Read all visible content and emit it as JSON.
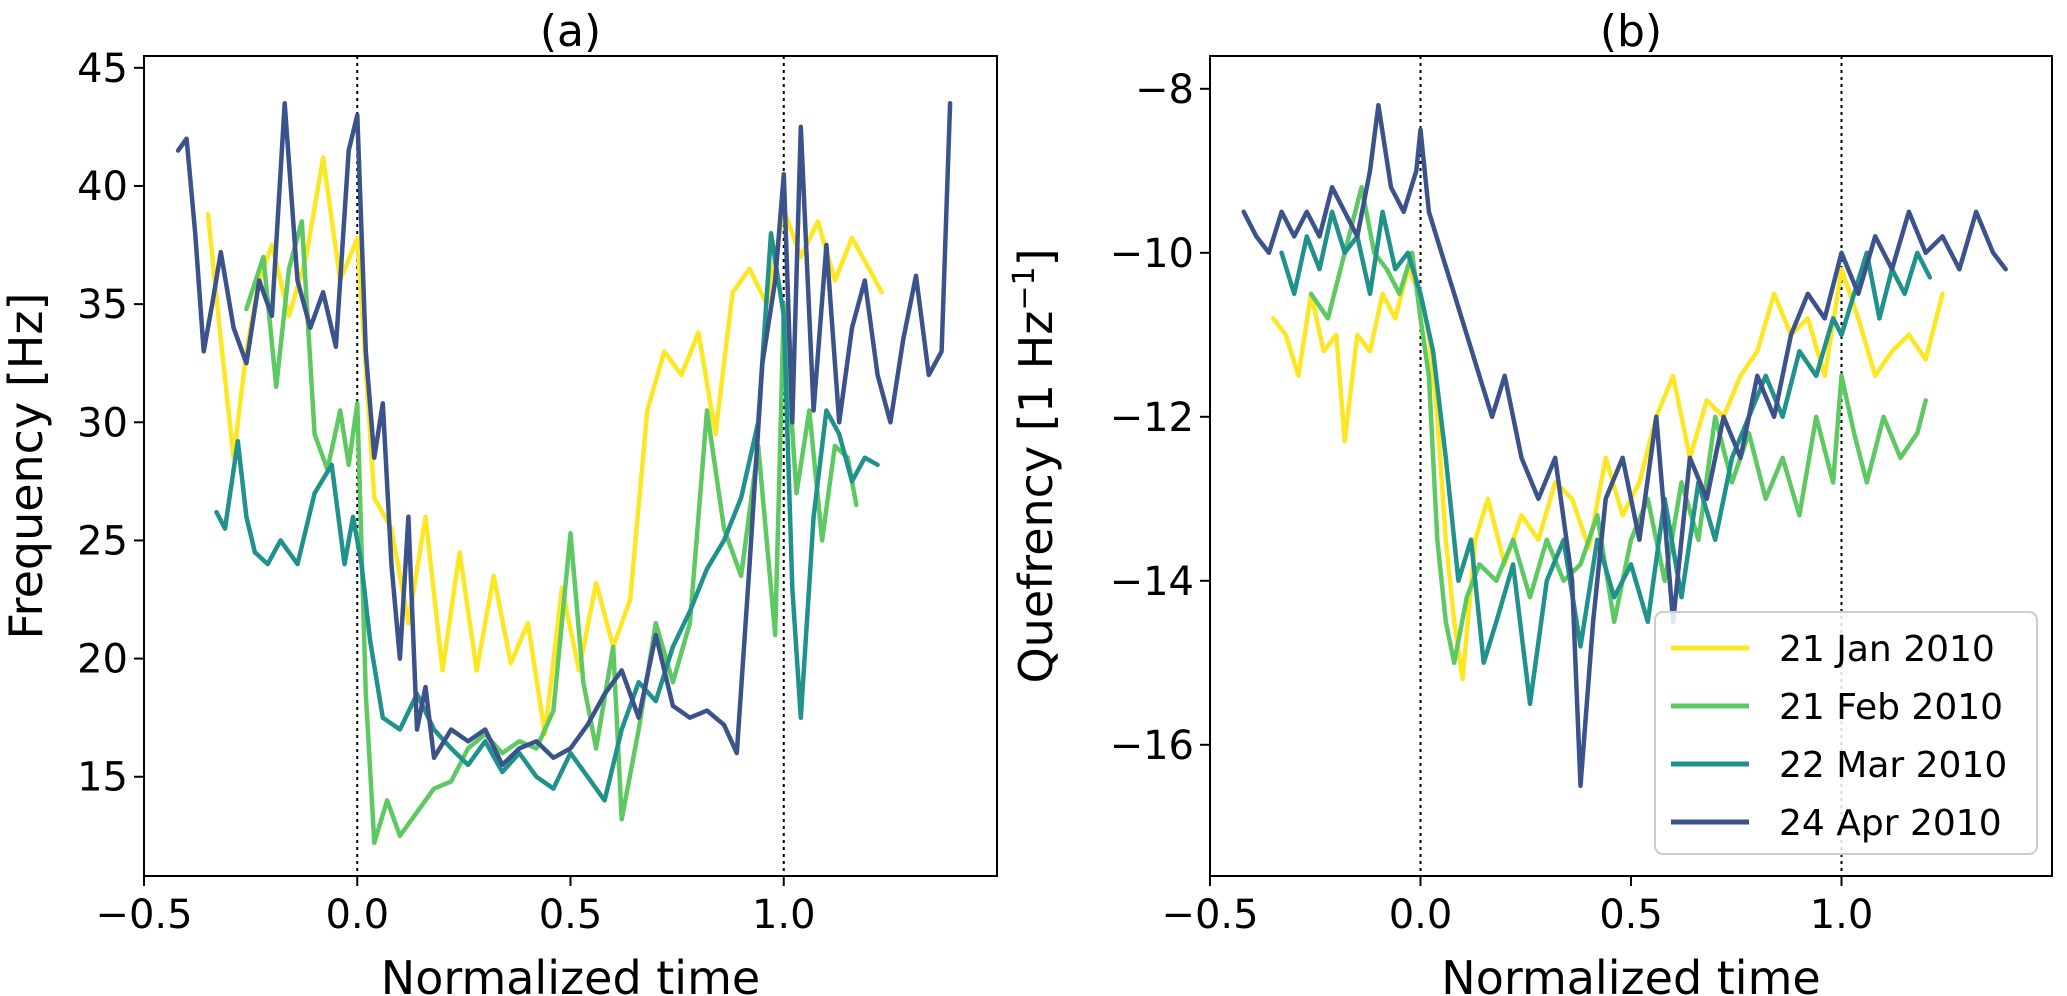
{
  "chart_data": [
    {
      "type": "line",
      "title": "(a)",
      "xlabel": "Normalized time",
      "ylabel": "Frequency [Hz]",
      "xlim": [
        -0.5,
        1.5
      ],
      "ylim": [
        10.8,
        45.5
      ],
      "xticks": [
        -0.5,
        0.0,
        0.5,
        1.0
      ],
      "xtick_labels": [
        "−0.5",
        "0.0",
        "0.5",
        "1.0"
      ],
      "yticks": [
        15,
        20,
        25,
        30,
        35,
        40,
        45
      ],
      "ytick_labels": [
        "15",
        "20",
        "25",
        "30",
        "35",
        "40",
        "45"
      ],
      "vlines": [
        0.0,
        1.0
      ],
      "grid": false,
      "series": [
        {
          "color": "#fde725",
          "x": [
            -0.35,
            -0.32,
            -0.29,
            -0.26,
            -0.23,
            -0.2,
            -0.16,
            -0.12,
            -0.08,
            -0.04,
            0.0,
            0.04,
            0.08,
            0.12,
            0.16,
            0.2,
            0.24,
            0.28,
            0.32,
            0.36,
            0.4,
            0.44,
            0.48,
            0.52,
            0.56,
            0.6,
            0.64,
            0.68,
            0.72,
            0.76,
            0.8,
            0.84,
            0.88,
            0.92,
            0.96,
            1.0,
            1.04,
            1.08,
            1.12,
            1.16,
            1.2,
            1.23
          ],
          "y": [
            38.8,
            33.5,
            28.5,
            33.0,
            36.0,
            37.5,
            34.5,
            37.0,
            41.2,
            36.0,
            37.8,
            26.8,
            25.5,
            21.5,
            26.0,
            19.5,
            24.5,
            19.5,
            23.5,
            19.8,
            21.5,
            16.8,
            23.0,
            19.5,
            23.2,
            20.5,
            22.5,
            30.5,
            33.0,
            32.0,
            33.8,
            29.5,
            35.5,
            36.5,
            35.0,
            39.0,
            37.0,
            38.5,
            36.0,
            37.8,
            36.5,
            35.5
          ]
        },
        {
          "color": "#5ec962",
          "x": [
            -0.26,
            -0.22,
            -0.19,
            -0.16,
            -0.13,
            -0.1,
            -0.07,
            -0.04,
            -0.02,
            0.0,
            0.02,
            0.04,
            0.07,
            0.1,
            0.14,
            0.18,
            0.22,
            0.26,
            0.3,
            0.34,
            0.38,
            0.42,
            0.46,
            0.5,
            0.53,
            0.56,
            0.6,
            0.62,
            0.66,
            0.7,
            0.74,
            0.78,
            0.82,
            0.86,
            0.9,
            0.94,
            0.98,
            1.0,
            1.03,
            1.06,
            1.09,
            1.12,
            1.15,
            1.17
          ],
          "y": [
            34.8,
            37.0,
            31.5,
            36.5,
            38.5,
            29.5,
            28.0,
            30.5,
            28.2,
            30.8,
            18.5,
            12.2,
            14.0,
            12.5,
            13.5,
            14.5,
            14.8,
            16.2,
            16.8,
            16.0,
            16.5,
            16.2,
            17.8,
            25.3,
            19.0,
            16.2,
            20.5,
            13.2,
            17.0,
            21.5,
            19.0,
            21.5,
            30.5,
            25.5,
            23.5,
            29.0,
            21.0,
            35.0,
            27.0,
            30.5,
            25.0,
            29.0,
            28.5,
            26.5
          ]
        },
        {
          "color": "#21918c",
          "x": [
            -0.33,
            -0.31,
            -0.28,
            -0.26,
            -0.24,
            -0.21,
            -0.18,
            -0.14,
            -0.1,
            -0.06,
            -0.03,
            -0.01,
            0.01,
            0.03,
            0.06,
            0.1,
            0.14,
            0.18,
            0.22,
            0.26,
            0.3,
            0.34,
            0.38,
            0.42,
            0.46,
            0.5,
            0.54,
            0.58,
            0.62,
            0.66,
            0.7,
            0.74,
            0.78,
            0.82,
            0.86,
            0.9,
            0.94,
            0.97,
            1.0,
            1.02,
            1.04,
            1.07,
            1.1,
            1.13,
            1.16,
            1.19,
            1.22
          ],
          "y": [
            26.2,
            25.5,
            29.2,
            26.0,
            24.5,
            24.0,
            25.0,
            24.0,
            27.0,
            28.2,
            24.0,
            26.0,
            24.0,
            20.8,
            17.5,
            17.0,
            18.5,
            17.0,
            16.2,
            15.5,
            16.5,
            15.2,
            16.0,
            15.0,
            14.5,
            16.0,
            15.0,
            14.0,
            17.0,
            19.0,
            18.2,
            20.5,
            22.0,
            23.8,
            25.0,
            26.8,
            30.0,
            38.0,
            34.5,
            23.0,
            17.5,
            26.0,
            30.5,
            29.5,
            27.5,
            28.5,
            28.2
          ]
        },
        {
          "color": "#3b528b",
          "x": [
            -0.42,
            -0.4,
            -0.38,
            -0.36,
            -0.34,
            -0.32,
            -0.29,
            -0.26,
            -0.23,
            -0.2,
            -0.17,
            -0.14,
            -0.11,
            -0.08,
            -0.05,
            -0.02,
            0.0,
            0.02,
            0.04,
            0.06,
            0.08,
            0.1,
            0.12,
            0.14,
            0.16,
            0.18,
            0.22,
            0.26,
            0.3,
            0.34,
            0.38,
            0.42,
            0.46,
            0.5,
            0.54,
            0.58,
            0.62,
            0.66,
            0.7,
            0.74,
            0.78,
            0.82,
            0.86,
            0.89,
            0.92,
            0.95,
            0.98,
            1.0,
            1.02,
            1.04,
            1.07,
            1.1,
            1.13,
            1.16,
            1.19,
            1.22,
            1.25,
            1.28,
            1.31,
            1.34,
            1.37,
            1.39
          ],
          "y": [
            41.5,
            42.0,
            38.0,
            33.0,
            35.0,
            37.2,
            34.0,
            32.5,
            36.0,
            34.5,
            43.5,
            36.0,
            34.0,
            35.5,
            33.2,
            41.5,
            43.0,
            33.0,
            28.5,
            30.8,
            24.0,
            20.0,
            26.0,
            17.0,
            18.8,
            15.8,
            17.0,
            16.5,
            17.0,
            15.5,
            16.2,
            16.5,
            15.8,
            16.2,
            17.2,
            18.5,
            19.5,
            17.5,
            21.0,
            18.0,
            17.5,
            17.8,
            17.2,
            16.0,
            24.0,
            32.5,
            36.0,
            40.5,
            30.0,
            42.5,
            30.5,
            37.5,
            30.0,
            34.0,
            36.0,
            32.0,
            30.0,
            33.5,
            36.2,
            32.0,
            33.0,
            43.5
          ]
        }
      ]
    },
    {
      "type": "line",
      "title": "(b)",
      "xlabel": "Normalized time",
      "ylabel": "Quefrency [1 Hz",
      "ylabel_superscript": "−1",
      "ylabel_suffix": "]",
      "xlim": [
        -0.5,
        1.5
      ],
      "ylim": [
        -17.6,
        -7.6
      ],
      "xticks": [
        -0.5,
        0.0,
        0.5,
        1.0
      ],
      "xtick_labels": [
        "−0.5",
        "0.0",
        "0.5",
        "1.0"
      ],
      "yticks": [
        -16,
        -14,
        -12,
        -10,
        -8
      ],
      "ytick_labels": [
        "−16",
        "−14",
        "−12",
        "−10",
        "−8"
      ],
      "vlines": [
        0.0,
        1.0
      ],
      "grid": false,
      "legend": "lower-right",
      "series": [
        {
          "name": "21 Jan 2010",
          "color": "#fde725",
          "x": [
            -0.35,
            -0.32,
            -0.29,
            -0.26,
            -0.23,
            -0.2,
            -0.18,
            -0.15,
            -0.12,
            -0.09,
            -0.06,
            -0.03,
            0.0,
            0.02,
            0.04,
            0.06,
            0.08,
            0.1,
            0.13,
            0.16,
            0.2,
            0.24,
            0.28,
            0.32,
            0.36,
            0.4,
            0.44,
            0.48,
            0.52,
            0.56,
            0.6,
            0.64,
            0.68,
            0.72,
            0.76,
            0.8,
            0.84,
            0.88,
            0.92,
            0.96,
            1.0,
            1.04,
            1.08,
            1.12,
            1.16,
            1.2,
            1.24
          ],
          "y": [
            -10.8,
            -11.0,
            -11.5,
            -10.5,
            -11.2,
            -11.0,
            -12.3,
            -11.0,
            -11.2,
            -10.5,
            -10.8,
            -10.2,
            -10.5,
            -11.0,
            -12.0,
            -13.5,
            -14.5,
            -15.2,
            -13.5,
            -13.0,
            -13.8,
            -13.2,
            -13.5,
            -12.8,
            -13.0,
            -13.6,
            -12.5,
            -13.2,
            -12.8,
            -12.0,
            -11.5,
            -12.5,
            -11.8,
            -12.0,
            -11.5,
            -11.2,
            -10.5,
            -11.0,
            -10.8,
            -11.5,
            -10.2,
            -10.8,
            -11.5,
            -11.2,
            -11.0,
            -11.3,
            -10.5
          ]
        },
        {
          "name": "21 Feb 2010",
          "color": "#5ec962",
          "x": [
            -0.26,
            -0.22,
            -0.18,
            -0.14,
            -0.11,
            -0.08,
            -0.05,
            -0.02,
            0.0,
            0.02,
            0.04,
            0.06,
            0.08,
            0.11,
            0.14,
            0.18,
            0.22,
            0.26,
            0.3,
            0.34,
            0.38,
            0.42,
            0.46,
            0.5,
            0.54,
            0.58,
            0.62,
            0.66,
            0.7,
            0.74,
            0.78,
            0.82,
            0.86,
            0.9,
            0.94,
            0.98,
            1.0,
            1.03,
            1.06,
            1.1,
            1.14,
            1.18,
            1.2
          ],
          "y": [
            -10.5,
            -10.8,
            -10.0,
            -9.2,
            -10.0,
            -10.2,
            -10.5,
            -10.0,
            -10.8,
            -11.5,
            -13.5,
            -14.5,
            -15.0,
            -14.2,
            -13.8,
            -14.0,
            -13.5,
            -14.2,
            -13.5,
            -14.0,
            -13.8,
            -13.2,
            -14.5,
            -13.5,
            -13.0,
            -14.0,
            -12.8,
            -13.5,
            -12.0,
            -12.8,
            -12.2,
            -13.0,
            -12.5,
            -13.2,
            -12.0,
            -12.8,
            -11.5,
            -12.2,
            -12.8,
            -12.0,
            -12.5,
            -12.2,
            -11.8
          ]
        },
        {
          "name": "22 Mar 2010",
          "color": "#21918c",
          "x": [
            -0.33,
            -0.3,
            -0.27,
            -0.24,
            -0.21,
            -0.18,
            -0.15,
            -0.12,
            -0.09,
            -0.06,
            -0.03,
            0.0,
            0.03,
            0.06,
            0.09,
            0.12,
            0.15,
            0.18,
            0.22,
            0.26,
            0.3,
            0.34,
            0.38,
            0.42,
            0.46,
            0.5,
            0.54,
            0.58,
            0.62,
            0.66,
            0.7,
            0.74,
            0.78,
            0.82,
            0.86,
            0.9,
            0.94,
            0.98,
            1.0,
            1.03,
            1.06,
            1.09,
            1.12,
            1.15,
            1.18,
            1.21
          ],
          "y": [
            -10.0,
            -10.5,
            -9.8,
            -10.2,
            -9.5,
            -10.0,
            -9.8,
            -10.5,
            -9.5,
            -10.2,
            -10.0,
            -10.5,
            -11.2,
            -12.5,
            -14.0,
            -13.5,
            -15.0,
            -14.5,
            -13.8,
            -15.5,
            -14.0,
            -13.5,
            -14.8,
            -13.5,
            -14.2,
            -13.8,
            -14.5,
            -13.0,
            -14.2,
            -12.8,
            -13.5,
            -12.5,
            -12.0,
            -11.5,
            -12.0,
            -11.2,
            -11.5,
            -10.8,
            -11.0,
            -10.5,
            -10.0,
            -10.8,
            -10.2,
            -10.5,
            -10.0,
            -10.3
          ]
        },
        {
          "name": "24 Apr 2010",
          "color": "#3b528b",
          "x": [
            -0.42,
            -0.39,
            -0.36,
            -0.33,
            -0.3,
            -0.27,
            -0.24,
            -0.21,
            -0.18,
            -0.15,
            -0.12,
            -0.1,
            -0.07,
            -0.04,
            -0.01,
            0.0,
            0.02,
            0.05,
            0.08,
            0.11,
            0.14,
            0.17,
            0.2,
            0.24,
            0.28,
            0.32,
            0.36,
            0.38,
            0.41,
            0.44,
            0.48,
            0.52,
            0.56,
            0.6,
            0.64,
            0.68,
            0.72,
            0.76,
            0.8,
            0.84,
            0.88,
            0.92,
            0.96,
            1.0,
            1.04,
            1.08,
            1.12,
            1.16,
            1.2,
            1.24,
            1.28,
            1.32,
            1.36,
            1.39
          ],
          "y": [
            -9.5,
            -9.8,
            -10.0,
            -9.5,
            -9.8,
            -9.5,
            -9.8,
            -9.2,
            -9.5,
            -9.8,
            -9.0,
            -8.2,
            -9.2,
            -9.5,
            -9.0,
            -8.5,
            -9.5,
            -10.0,
            -10.5,
            -11.0,
            -11.5,
            -12.0,
            -11.5,
            -12.5,
            -13.0,
            -12.5,
            -14.0,
            -16.5,
            -14.5,
            -13.0,
            -12.5,
            -13.5,
            -12.0,
            -14.5,
            -12.5,
            -13.0,
            -12.0,
            -12.5,
            -11.5,
            -12.0,
            -11.0,
            -10.5,
            -10.8,
            -10.0,
            -10.5,
            -9.8,
            -10.2,
            -9.5,
            -10.0,
            -9.8,
            -10.2,
            -9.5,
            -10.0,
            -10.2
          ]
        }
      ]
    }
  ]
}
